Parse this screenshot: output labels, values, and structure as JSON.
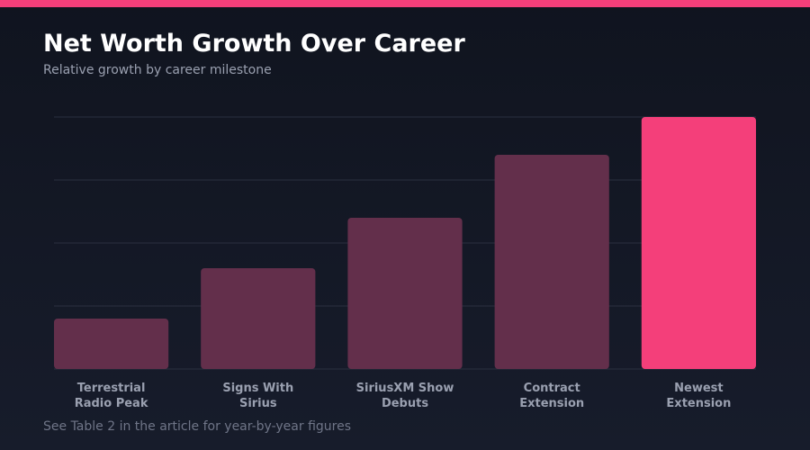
{
  "colors": {
    "accent": "#f43f7a",
    "bar_default": "#632f4b",
    "background": "#131826",
    "grid": "#2b3040"
  },
  "header": {
    "title": "Net Worth Growth Over Career",
    "subtitle": "Relative growth by career milestone"
  },
  "footnote": "See Table 2 in the article for year-by-year figures",
  "chart_data": {
    "type": "bar",
    "title": "Net Worth Growth Over Career",
    "subtitle": "Relative growth by career milestone",
    "xlabel": "",
    "ylabel": "",
    "categories": [
      "Terrestrial\nRadio Peak",
      "Signs With\nSirius",
      "SiriusXM Show\nDebuts",
      "Contract\nExtension",
      "Newest\nExtension"
    ],
    "values": [
      20,
      40,
      60,
      85,
      100
    ],
    "highlight_index": 4,
    "ylim": [
      0,
      100
    ],
    "grid": true,
    "legend": "none"
  }
}
